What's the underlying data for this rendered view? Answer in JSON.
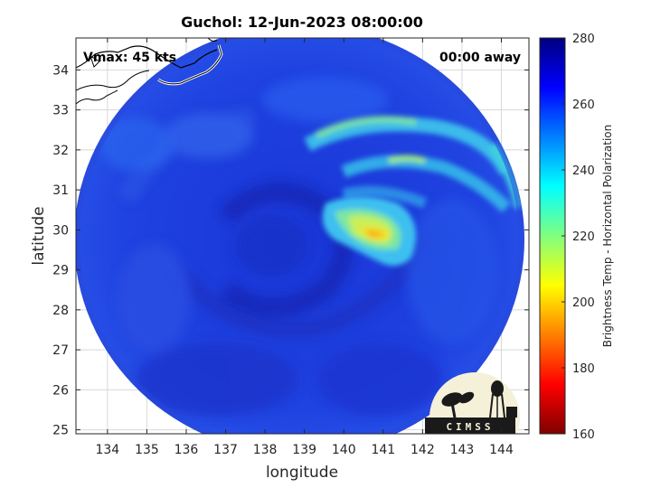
{
  "map": {
    "title": "Guchol: 12-Jun-2023 08:00:00",
    "vmax_label": "Vmax: 45 kts",
    "time_away_label": "00:00 away",
    "xlabel": "longitude",
    "ylabel": "latitude",
    "x_ticks": [
      "134",
      "135",
      "136",
      "137",
      "138",
      "139",
      "140",
      "141",
      "142",
      "143",
      "144"
    ],
    "y_ticks": [
      "34",
      "33",
      "32",
      "31",
      "30",
      "29",
      "28",
      "27",
      "26",
      "25"
    ],
    "x_range": [
      133.2,
      144.7
    ],
    "y_range": [
      24.9,
      34.8
    ],
    "storm_center": {
      "lon": 138.9,
      "lat": 29.8
    },
    "colors": {
      "ocean_blue": "#1f3fdc",
      "deep_blue": "#1428b8",
      "cloud_cyan": "#3fd6ea",
      "cloud_yellow": "#f0e02a"
    }
  },
  "colorbar": {
    "label": "Brightness Temp - Horizontal Polarization",
    "ticks": [
      "280",
      "260",
      "240",
      "220",
      "200",
      "180",
      "160"
    ],
    "range": [
      160,
      280
    ],
    "colormap": "jet"
  },
  "logo": {
    "text": "CIMSS"
  }
}
